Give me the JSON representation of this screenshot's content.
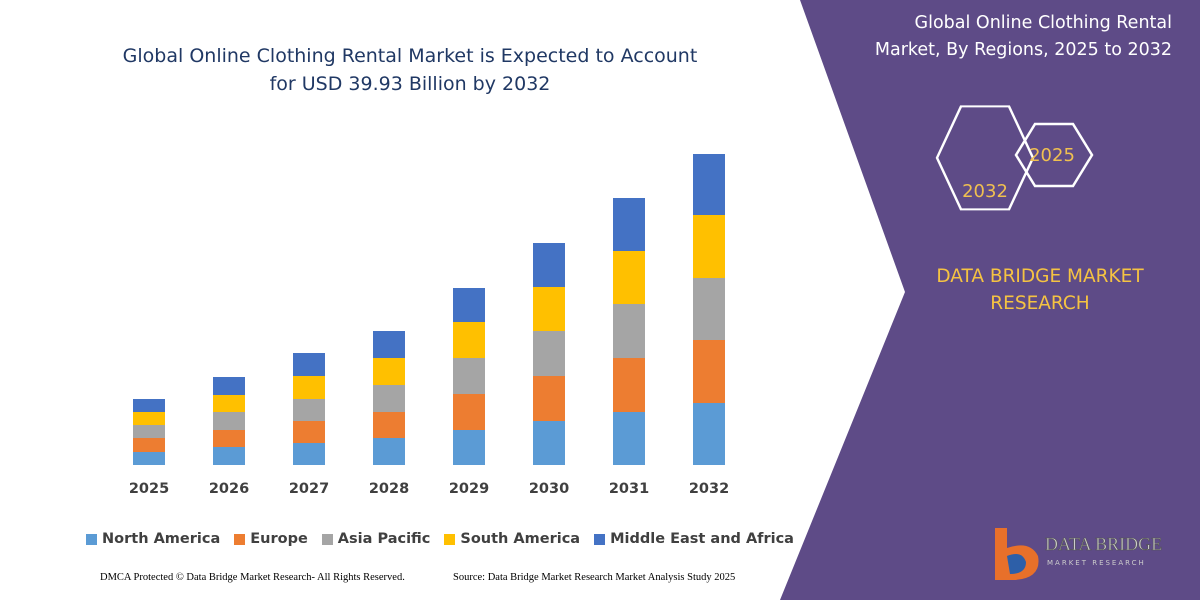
{
  "chart_data": {
    "type": "stacked_bar",
    "title": "Global Online Clothing Rental Market is Expected to Account for USD 39.93 Billion by 2032",
    "categories": [
      "2025",
      "2026",
      "2027",
      "2028",
      "2029",
      "2030",
      "2031",
      "2032"
    ],
    "series": [
      {
        "name": "North America",
        "color": "#5b9bd5",
        "values": [
          13,
          18,
          22,
          27,
          35,
          44,
          53,
          62
        ]
      },
      {
        "name": "Europe",
        "color": "#ed7d31",
        "values": [
          14,
          17,
          22,
          26,
          36,
          45,
          54,
          63
        ]
      },
      {
        "name": "Asia Pacific",
        "color": "#a5a5a5",
        "values": [
          13,
          18,
          22,
          27,
          36,
          45,
          54,
          62
        ]
      },
      {
        "name": "South America",
        "color": "#ffc000",
        "values": [
          13,
          17,
          23,
          27,
          36,
          44,
          53,
          63
        ]
      },
      {
        "name": "Middle East and Africa",
        "color": "#4472c4",
        "values": [
          13,
          18,
          23,
          27,
          34,
          44,
          53,
          61
        ]
      }
    ],
    "ylim": [
      0,
      320
    ],
    "grid": false,
    "legend": "bottom"
  },
  "side_panel": {
    "title": "Global Online Clothing Rental Market, By Regions, 2025 to 2032",
    "badges": [
      "2025",
      "2032"
    ],
    "brand": [
      "DATA BRIDGE MARKET",
      "RESEARCH"
    ]
  },
  "logo": {
    "name": "DATA BRIDGE",
    "tagline": "MARKET RESEARCH"
  },
  "footer": {
    "left": "DMCA Protected © Data Bridge Market Research-  All Rights Reserved.",
    "right": "Source: Data Bridge Market Research  Market Analysis Study 2025"
  }
}
